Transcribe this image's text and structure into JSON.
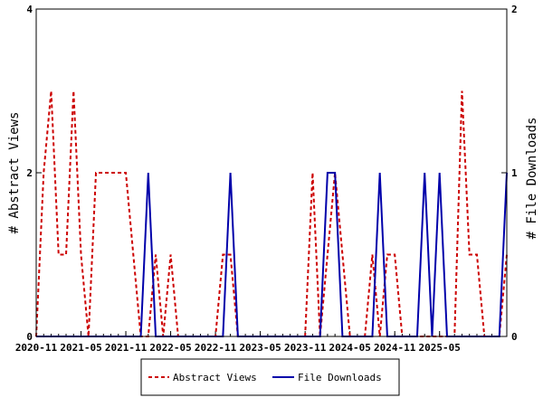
{
  "chart_data": {
    "type": "line",
    "x_labels": [
      "2020-11",
      "2021-05",
      "2021-11",
      "2022-05",
      "2022-11",
      "2023-05",
      "2023-11",
      "2024-05",
      "2024-11",
      "2025-05"
    ],
    "x_start": "2020-11",
    "y_left": {
      "label": "# Abstract Views",
      "lim": [
        0,
        4
      ],
      "ticks": [
        "0",
        "2",
        "4"
      ]
    },
    "y_right": {
      "label": "# File Downloads",
      "lim": [
        0,
        2
      ],
      "ticks": [
        "0",
        "1",
        "2"
      ]
    },
    "legend": {
      "position": "bottom-center"
    },
    "grid": false,
    "series": [
      {
        "name": "Abstract Views",
        "axis": "left",
        "color": "#cc0000",
        "style": "dashed",
        "values": [
          0,
          2,
          3,
          1,
          1,
          3,
          1,
          0,
          2,
          2,
          2,
          2,
          2,
          1,
          0,
          0,
          1,
          0,
          1,
          0,
          0,
          0,
          0,
          0,
          0,
          1,
          1,
          0,
          0,
          0,
          0,
          0,
          0,
          0,
          0,
          0,
          0,
          2,
          0,
          1,
          2,
          1,
          0,
          0,
          0,
          1,
          0,
          1,
          1,
          0,
          0,
          0,
          0,
          0,
          0,
          0,
          0,
          3,
          1,
          1,
          0,
          0,
          0,
          1
        ]
      },
      {
        "name": "File Downloads",
        "axis": "right",
        "color": "#0000aa",
        "style": "solid",
        "values": [
          0,
          0,
          0,
          0,
          0,
          0,
          0,
          0,
          0,
          0,
          0,
          0,
          0,
          0,
          0,
          1,
          0,
          0,
          0,
          0,
          0,
          0,
          0,
          0,
          0,
          0,
          1,
          0,
          0,
          0,
          0,
          0,
          0,
          0,
          0,
          0,
          0,
          0,
          0,
          1,
          1,
          0,
          0,
          0,
          0,
          0,
          1,
          0,
          0,
          0,
          0,
          0,
          1,
          0,
          1,
          0,
          0,
          0,
          0,
          0,
          0,
          0,
          0,
          1
        ]
      }
    ]
  }
}
